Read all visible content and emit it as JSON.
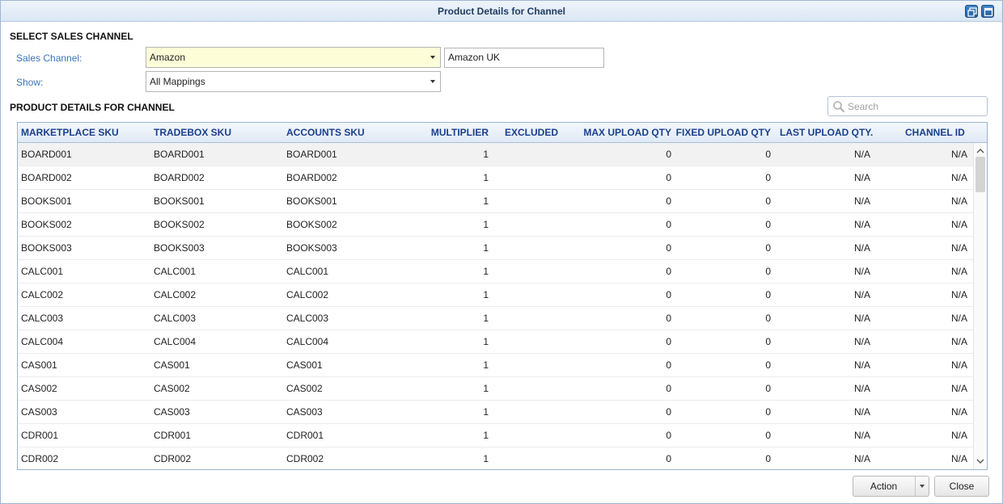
{
  "window": {
    "title": "Product Details for Channel"
  },
  "select_section": {
    "title": "SELECT SALES CHANNEL",
    "sales_channel_label": "Sales Channel:",
    "sales_channel_value": "Amazon",
    "channel_name_value": "Amazon UK",
    "show_label": "Show:",
    "show_value": "All Mappings"
  },
  "details_section": {
    "title": "PRODUCT DETAILS FOR CHANNEL",
    "search_placeholder": "Search"
  },
  "table": {
    "columns": [
      "MARKETPLACE SKU",
      "TRADEBOX SKU",
      "ACCOUNTS SKU",
      "MULTIPLIER",
      "EXCLUDED",
      "MAX UPLOAD QTY",
      "FIXED UPLOAD QTY",
      "LAST UPLOAD QTY.",
      "CHANNEL ID"
    ],
    "rows": [
      [
        "BOARD001",
        "BOARD001",
        "BOARD001",
        "1",
        "",
        "0",
        "0",
        "N/A",
        "N/A"
      ],
      [
        "BOARD002",
        "BOARD002",
        "BOARD002",
        "1",
        "",
        "0",
        "0",
        "N/A",
        "N/A"
      ],
      [
        "BOOKS001",
        "BOOKS001",
        "BOOKS001",
        "1",
        "",
        "0",
        "0",
        "N/A",
        "N/A"
      ],
      [
        "BOOKS002",
        "BOOKS002",
        "BOOKS002",
        "1",
        "",
        "0",
        "0",
        "N/A",
        "N/A"
      ],
      [
        "BOOKS003",
        "BOOKS003",
        "BOOKS003",
        "1",
        "",
        "0",
        "0",
        "N/A",
        "N/A"
      ],
      [
        "CALC001",
        "CALC001",
        "CALC001",
        "1",
        "",
        "0",
        "0",
        "N/A",
        "N/A"
      ],
      [
        "CALC002",
        "CALC002",
        "CALC002",
        "1",
        "",
        "0",
        "0",
        "N/A",
        "N/A"
      ],
      [
        "CALC003",
        "CALC003",
        "CALC003",
        "1",
        "",
        "0",
        "0",
        "N/A",
        "N/A"
      ],
      [
        "CALC004",
        "CALC004",
        "CALC004",
        "1",
        "",
        "0",
        "0",
        "N/A",
        "N/A"
      ],
      [
        "CAS001",
        "CAS001",
        "CAS001",
        "1",
        "",
        "0",
        "0",
        "N/A",
        "N/A"
      ],
      [
        "CAS002",
        "CAS002",
        "CAS002",
        "1",
        "",
        "0",
        "0",
        "N/A",
        "N/A"
      ],
      [
        "CAS003",
        "CAS003",
        "CAS003",
        "1",
        "",
        "0",
        "0",
        "N/A",
        "N/A"
      ],
      [
        "CDR001",
        "CDR001",
        "CDR001",
        "1",
        "",
        "0",
        "0",
        "N/A",
        "N/A"
      ],
      [
        "CDR002",
        "CDR002",
        "CDR002",
        "1",
        "",
        "0",
        "0",
        "N/A",
        "N/A"
      ]
    ]
  },
  "footer": {
    "action_label": "Action",
    "close_label": "Close"
  },
  "colors": {
    "accent": "#1b3f8b",
    "label": "#3b73b9",
    "highlight_field": "#fdfdd7"
  }
}
